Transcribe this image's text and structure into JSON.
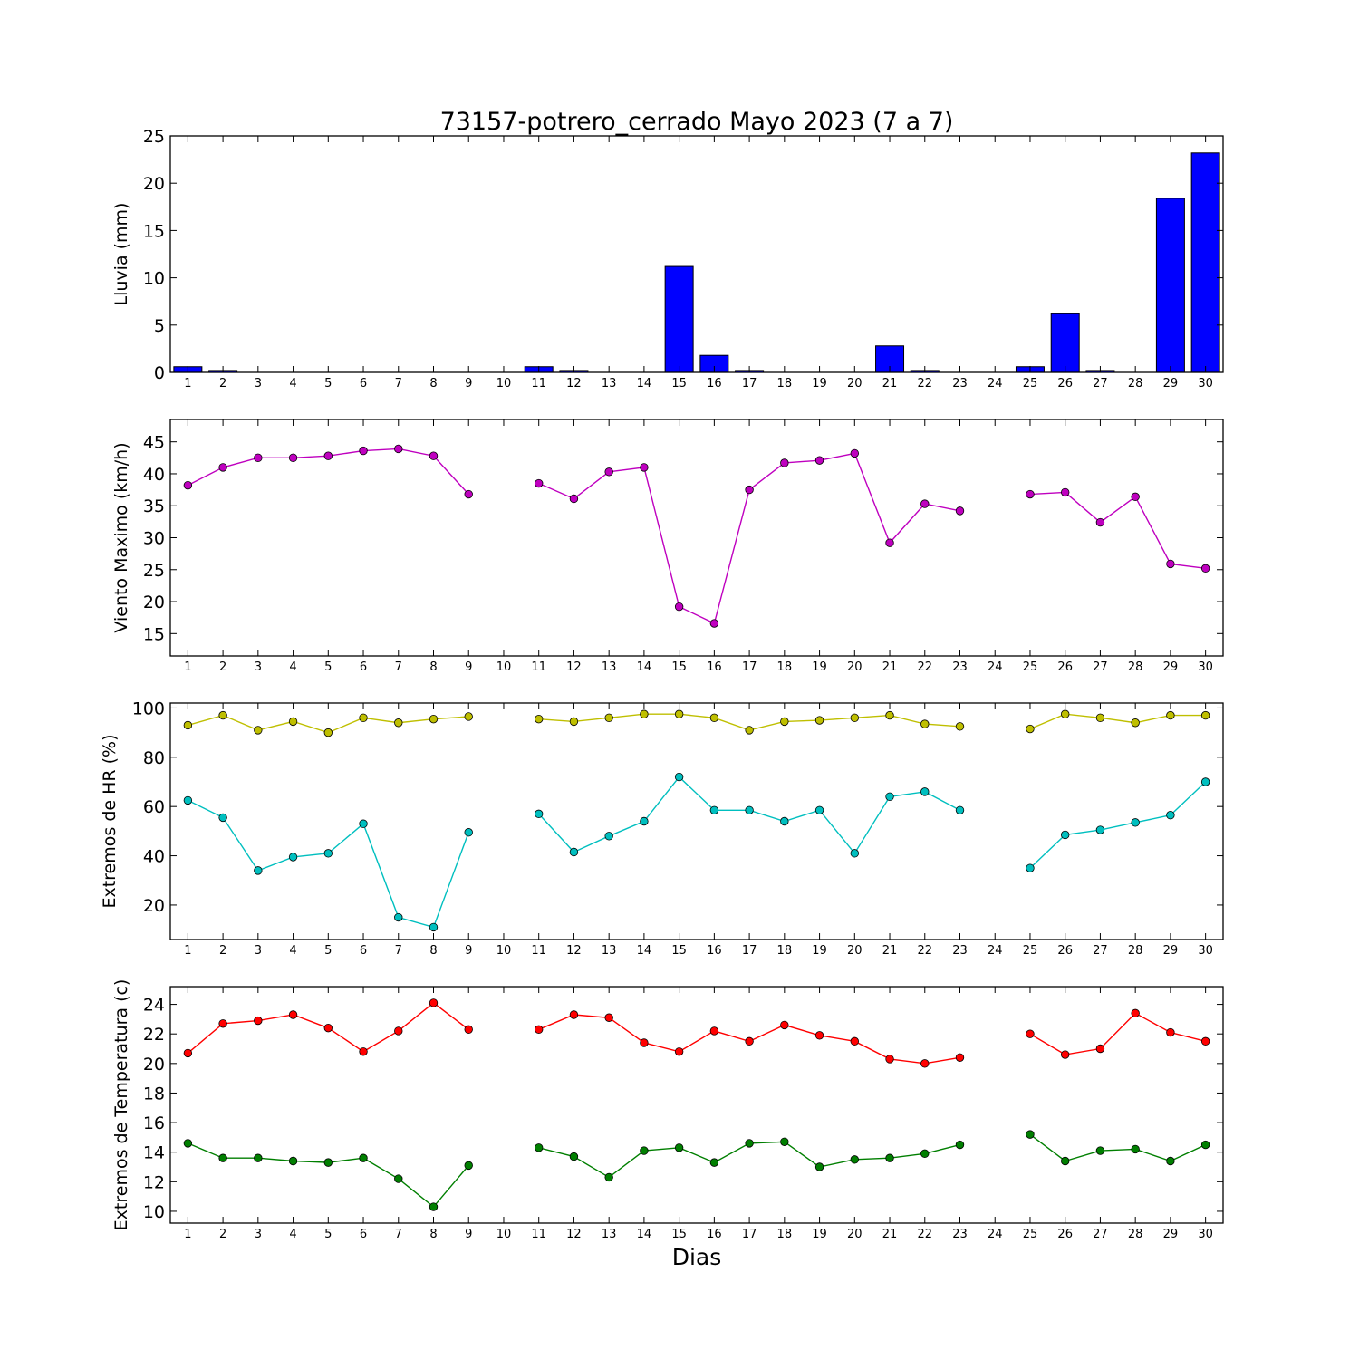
{
  "title": "73157-potrero_cerrado Mayo 2023  (7 a 7)",
  "xlabel": "Dias",
  "chart_data": [
    {
      "type": "bar",
      "ylabel": "Lluvia (mm)",
      "ylim": [
        0,
        25
      ],
      "yticks": [
        0,
        5,
        10,
        15,
        20,
        25
      ],
      "x": [
        1,
        2,
        3,
        4,
        5,
        6,
        7,
        8,
        9,
        10,
        11,
        12,
        13,
        14,
        15,
        16,
        17,
        18,
        19,
        20,
        21,
        22,
        23,
        24,
        25,
        26,
        27,
        28,
        29,
        30
      ],
      "xlim": [
        0.5,
        30.5
      ],
      "grid": false,
      "series": [
        {
          "color": "#0000ff",
          "values": [
            0.6,
            0.2,
            0,
            0,
            0,
            0,
            0,
            0,
            0,
            0,
            0.6,
            0.2,
            0,
            0,
            11.2,
            1.8,
            0.2,
            0,
            0,
            0,
            2.8,
            0.2,
            0,
            0,
            0.6,
            6.2,
            0.2,
            0,
            18.4,
            23.2
          ]
        }
      ]
    },
    {
      "type": "line",
      "ylabel": "Viento Maximo (km/h)",
      "ylim": [
        11.5,
        48.5
      ],
      "yticks": [
        15,
        20,
        25,
        30,
        35,
        40,
        45
      ],
      "x": [
        1,
        2,
        3,
        4,
        5,
        6,
        7,
        8,
        9,
        10,
        11,
        12,
        13,
        14,
        15,
        16,
        17,
        18,
        19,
        20,
        21,
        22,
        23,
        24,
        25,
        26,
        27,
        28,
        29,
        30
      ],
      "xlim": [
        0.5,
        30.5
      ],
      "grid": false,
      "series": [
        {
          "color": "#bf00bf",
          "values": [
            38.2,
            41.0,
            42.5,
            42.5,
            42.8,
            43.6,
            43.9,
            42.8,
            36.8,
            null,
            38.5,
            36.1,
            40.3,
            41.0,
            19.2,
            16.6,
            37.5,
            41.7,
            42.1,
            43.2,
            29.2,
            35.3,
            34.2,
            null,
            36.8,
            37.1,
            32.4,
            36.4,
            25.9,
            25.2
          ]
        }
      ]
    },
    {
      "type": "line",
      "ylabel": "Extremos de HR (%)",
      "ylim": [
        6,
        102
      ],
      "yticks": [
        20,
        40,
        60,
        80,
        100
      ],
      "x": [
        1,
        2,
        3,
        4,
        5,
        6,
        7,
        8,
        9,
        10,
        11,
        12,
        13,
        14,
        15,
        16,
        17,
        18,
        19,
        20,
        21,
        22,
        23,
        24,
        25,
        26,
        27,
        28,
        29,
        30
      ],
      "xlim": [
        0.5,
        30.5
      ],
      "grid": false,
      "series": [
        {
          "color": "#bfbf00",
          "values": [
            93,
            97,
            91,
            94.5,
            90,
            96,
            94,
            95.5,
            96.5,
            null,
            95.5,
            94.5,
            96,
            97.5,
            97.5,
            96,
            91,
            94.5,
            95,
            96,
            97,
            93.5,
            92.5,
            null,
            91.5,
            97.5,
            96,
            94,
            97,
            97
          ]
        },
        {
          "color": "#00bfbf",
          "values": [
            62.5,
            55.5,
            34,
            39.5,
            41,
            53,
            15,
            11,
            49.5,
            null,
            57,
            41.5,
            48,
            54,
            72,
            58.5,
            58.5,
            54,
            58.5,
            41,
            64,
            66,
            58.5,
            null,
            35,
            48.5,
            50.5,
            53.5,
            56.5,
            70
          ]
        }
      ]
    },
    {
      "type": "line",
      "ylabel": "Extremos de Temperatura (c)",
      "ylim": [
        9.2,
        25.2
      ],
      "yticks": [
        10,
        12,
        14,
        16,
        18,
        20,
        22,
        24
      ],
      "x": [
        1,
        2,
        3,
        4,
        5,
        6,
        7,
        8,
        9,
        10,
        11,
        12,
        13,
        14,
        15,
        16,
        17,
        18,
        19,
        20,
        21,
        22,
        23,
        24,
        25,
        26,
        27,
        28,
        29,
        30
      ],
      "xlim": [
        0.5,
        30.5
      ],
      "grid": false,
      "series": [
        {
          "color": "#ff0000",
          "values": [
            20.7,
            22.7,
            22.9,
            23.3,
            22.4,
            20.8,
            22.2,
            24.1,
            22.3,
            null,
            22.3,
            23.3,
            23.1,
            21.4,
            20.8,
            22.2,
            21.5,
            22.6,
            21.9,
            21.5,
            20.3,
            20.0,
            20.4,
            null,
            22.0,
            20.6,
            21.0,
            23.4,
            22.1,
            21.5
          ]
        },
        {
          "color": "#007f00",
          "values": [
            14.6,
            13.6,
            13.6,
            13.4,
            13.3,
            13.6,
            12.2,
            10.3,
            13.1,
            null,
            14.3,
            13.7,
            12.3,
            14.1,
            14.3,
            13.3,
            14.6,
            14.7,
            13.0,
            13.5,
            13.6,
            13.9,
            14.5,
            null,
            15.2,
            13.4,
            14.1,
            14.2,
            13.4,
            14.5
          ]
        }
      ]
    }
  ]
}
